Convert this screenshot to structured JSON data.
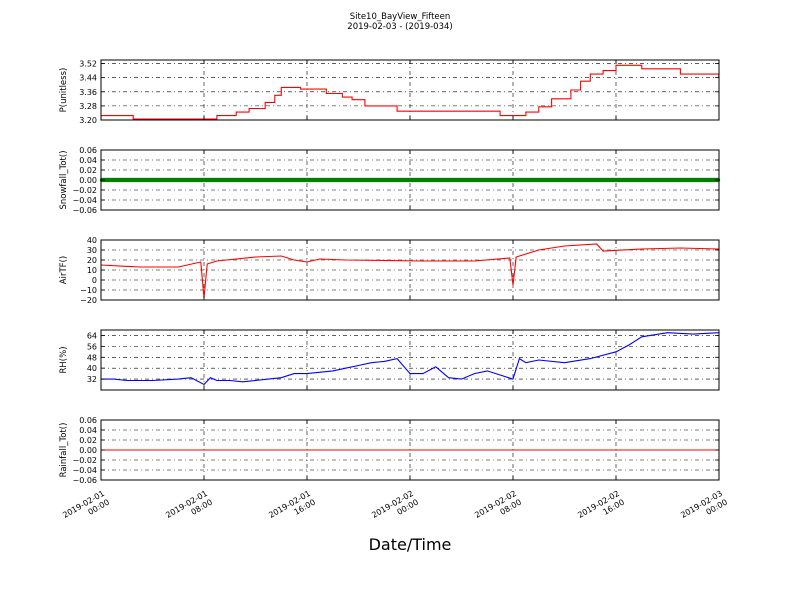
{
  "figure": {
    "title": "Site10_BayView_Fifteen",
    "subtitle": "2019-02-03 - (2019-034)",
    "xlabel": "Date/Time"
  },
  "chart_data": {
    "type": "line",
    "x_axis": {
      "type": "datetime",
      "range": [
        "2019-02-01 00:00",
        "2019-02-03 00:00"
      ],
      "ticks": [
        {
          "value": "2019-02-01 00:00",
          "line1": "2019-02-01",
          "line2": "00:00"
        },
        {
          "value": "2019-02-01 08:00",
          "line1": "2019-02-01",
          "line2": "08:00"
        },
        {
          "value": "2019-02-01 16:00",
          "line1": "2019-02-01",
          "line2": "16:00"
        },
        {
          "value": "2019-02-02 00:00",
          "line1": "2019-02-02",
          "line2": "00:00"
        },
        {
          "value": "2019-02-02 08:00",
          "line1": "2019-02-02",
          "line2": "08:00"
        },
        {
          "value": "2019-02-02 16:00",
          "line1": "2019-02-02",
          "line2": "16:00"
        },
        {
          "value": "2019-02-03 00:00",
          "line1": "2019-02-03",
          "line2": "00:00"
        }
      ]
    },
    "grid": true,
    "panels": [
      {
        "key": "p",
        "ylabel": "P(unitless)",
        "ylim": [
          3.2,
          3.54
        ],
        "yticks": [
          3.2,
          3.28,
          3.36,
          3.44,
          3.52
        ],
        "ytick_labels": [
          "3.20",
          "3.28",
          "3.36",
          "3.44",
          "3.52"
        ],
        "color": "#ff0000",
        "style": "step",
        "series": {
          "x": [
            "2019-02-01 00:00",
            "2019-02-01 02:30",
            "2019-02-01 09:00",
            "2019-02-01 10:30",
            "2019-02-01 11:30",
            "2019-02-01 12:45",
            "2019-02-01 13:30",
            "2019-02-01 14:00",
            "2019-02-01 15:30",
            "2019-02-01 17:30",
            "2019-02-01 18:45",
            "2019-02-01 19:30",
            "2019-02-01 20:30",
            "2019-02-01 23:00",
            "2019-02-02 07:00",
            "2019-02-02 09:00",
            "2019-02-02 10:00",
            "2019-02-02 11:00",
            "2019-02-02 12:30",
            "2019-02-02 13:15",
            "2019-02-02 14:00",
            "2019-02-02 15:00",
            "2019-02-02 16:00",
            "2019-02-02 18:00",
            "2019-02-02 21:00",
            "2019-02-02 23:59"
          ],
          "y": [
            3.225,
            3.205,
            3.225,
            3.245,
            3.265,
            3.3,
            3.34,
            3.385,
            3.375,
            3.35,
            3.33,
            3.315,
            3.28,
            3.25,
            3.225,
            3.245,
            3.275,
            3.32,
            3.37,
            3.42,
            3.46,
            3.48,
            3.51,
            3.49,
            3.46,
            3.44
          ]
        }
      },
      {
        "key": "snow",
        "ylabel": "Snowfall_Tot()",
        "ylim": [
          -0.06,
          0.06
        ],
        "yticks": [
          -0.06,
          -0.04,
          -0.02,
          0.0,
          0.02,
          0.04,
          0.06
        ],
        "ytick_labels": [
          "−0.06",
          "−0.04",
          "−0.02",
          "0.00",
          "0.02",
          "0.04",
          "0.06"
        ],
        "color": "#008000",
        "style": "dots",
        "series": {
          "x": [
            "2019-02-01 00:00",
            "2019-02-02 23:59"
          ],
          "y": [
            0.0,
            0.0
          ]
        }
      },
      {
        "key": "air",
        "ylabel": "AirTF()",
        "ylim": [
          -20,
          40
        ],
        "yticks": [
          -20,
          -10,
          0,
          10,
          20,
          30,
          40
        ],
        "ytick_labels": [
          "−20",
          "−10",
          "0",
          "10",
          "20",
          "30",
          "40"
        ],
        "color": "#ff0000",
        "style": "line",
        "series": {
          "x": [
            "2019-02-01 00:00",
            "2019-02-01 03:00",
            "2019-02-01 06:00",
            "2019-02-01 07:45",
            "2019-02-01 08:00",
            "2019-02-01 08:15",
            "2019-02-01 09:00",
            "2019-02-01 12:00",
            "2019-02-01 14:00",
            "2019-02-01 15:00",
            "2019-02-01 16:00",
            "2019-02-01 17:00",
            "2019-02-01 19:00",
            "2019-02-02 01:00",
            "2019-02-02 05:00",
            "2019-02-02 07:45",
            "2019-02-02 08:00",
            "2019-02-02 08:15",
            "2019-02-02 10:00",
            "2019-02-02 12:00",
            "2019-02-02 14:30",
            "2019-02-02 15:00",
            "2019-02-02 18:00",
            "2019-02-02 21:00",
            "2019-02-02 23:59"
          ],
          "y": [
            15,
            13,
            13,
            18,
            -18,
            16,
            19,
            23,
            24,
            20,
            18,
            21,
            20,
            19,
            19,
            22,
            -5,
            23,
            30,
            34,
            36,
            29,
            31,
            32,
            31
          ]
        }
      },
      {
        "key": "rh",
        "ylabel": "RH(%)",
        "ylim": [
          24,
          68
        ],
        "yticks": [
          32,
          40,
          48,
          56,
          64
        ],
        "ytick_labels": [
          "32",
          "40",
          "48",
          "56",
          "64"
        ],
        "color": "#0000ff",
        "style": "line",
        "series": {
          "x": [
            "2019-02-01 00:00",
            "2019-02-01 01:00",
            "2019-02-01 02:00",
            "2019-02-01 04:00",
            "2019-02-01 06:00",
            "2019-02-01 07:00",
            "2019-02-01 08:00",
            "2019-02-01 08:30",
            "2019-02-01 09:00",
            "2019-02-01 10:00",
            "2019-02-01 11:00",
            "2019-02-01 12:00",
            "2019-02-01 13:00",
            "2019-02-01 14:00",
            "2019-02-01 15:00",
            "2019-02-01 16:00",
            "2019-02-01 18:00",
            "2019-02-01 19:00",
            "2019-02-01 20:00",
            "2019-02-01 21:00",
            "2019-02-01 22:00",
            "2019-02-01 23:00",
            "2019-02-02 00:00",
            "2019-02-02 01:00",
            "2019-02-02 02:00",
            "2019-02-02 03:00",
            "2019-02-02 04:00",
            "2019-02-02 05:00",
            "2019-02-02 06:00",
            "2019-02-02 07:00",
            "2019-02-02 08:00",
            "2019-02-02 08:30",
            "2019-02-02 09:00",
            "2019-02-02 10:00",
            "2019-02-02 12:00",
            "2019-02-02 14:00",
            "2019-02-02 16:00",
            "2019-02-02 17:00",
            "2019-02-02 18:00",
            "2019-02-02 20:00",
            "2019-02-02 22:00",
            "2019-02-02 23:59"
          ],
          "y": [
            32,
            32,
            31,
            31,
            32,
            33,
            28,
            33,
            31,
            31,
            30,
            31,
            32,
            33,
            36,
            36,
            38,
            40,
            42,
            44,
            45,
            47,
            36,
            36,
            41,
            33,
            32,
            36,
            38,
            35,
            32,
            47,
            44,
            46,
            44,
            47,
            52,
            57,
            63,
            66,
            65,
            66
          ]
        }
      },
      {
        "key": "rain",
        "ylabel": "Rainfall_Tot()",
        "ylim": [
          -0.06,
          0.06
        ],
        "yticks": [
          -0.06,
          -0.04,
          -0.02,
          0.0,
          0.02,
          0.04,
          0.06
        ],
        "ytick_labels": [
          "−0.06",
          "−0.04",
          "−0.02",
          "0.00",
          "0.02",
          "0.04",
          "0.06"
        ],
        "color": "#ff0000",
        "style": "line",
        "series": {
          "x": [
            "2019-02-01 00:00",
            "2019-02-02 23:59"
          ],
          "y": [
            0.0,
            0.0
          ]
        }
      }
    ]
  }
}
